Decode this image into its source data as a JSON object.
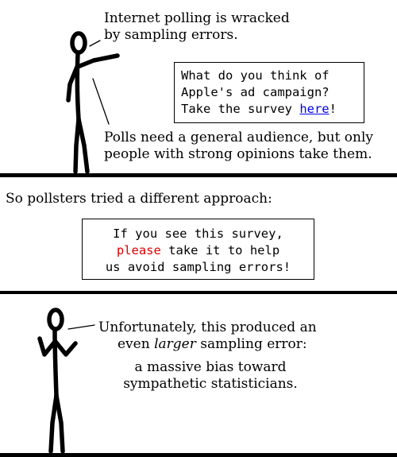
{
  "colors": {
    "ink": "#000000",
    "background": "#ffffff",
    "link": "#0000ee",
    "highlight_red": "#dd0000"
  },
  "panel1": {
    "caption_top": {
      "line1": "Internet polling is wracked",
      "line2": "by sampling errors."
    },
    "survey": {
      "line1": "What do you think of",
      "line2": "Apple's ad campaign?",
      "line3_before": "Take the survey ",
      "link_text": "here",
      "line3_after": "!"
    },
    "caption_bottom": {
      "line1": "Polls need a general audience, but only",
      "line2": "people with strong opinions take them."
    }
  },
  "panel2": {
    "caption": "So pollsters tried a different approach:",
    "survey": {
      "line1": "If you see this survey,",
      "line2_highlight": "please",
      "line2_rest": " take it to help",
      "line3": "us avoid sampling errors!"
    }
  },
  "panel3": {
    "caption": {
      "line1": "Unfortunately, this produced an",
      "line2_before": "even ",
      "line2_emphasis": "larger",
      "line2_after": " sampling error:",
      "line3": "a massive bias toward",
      "line4": "sympathetic statisticians."
    }
  }
}
